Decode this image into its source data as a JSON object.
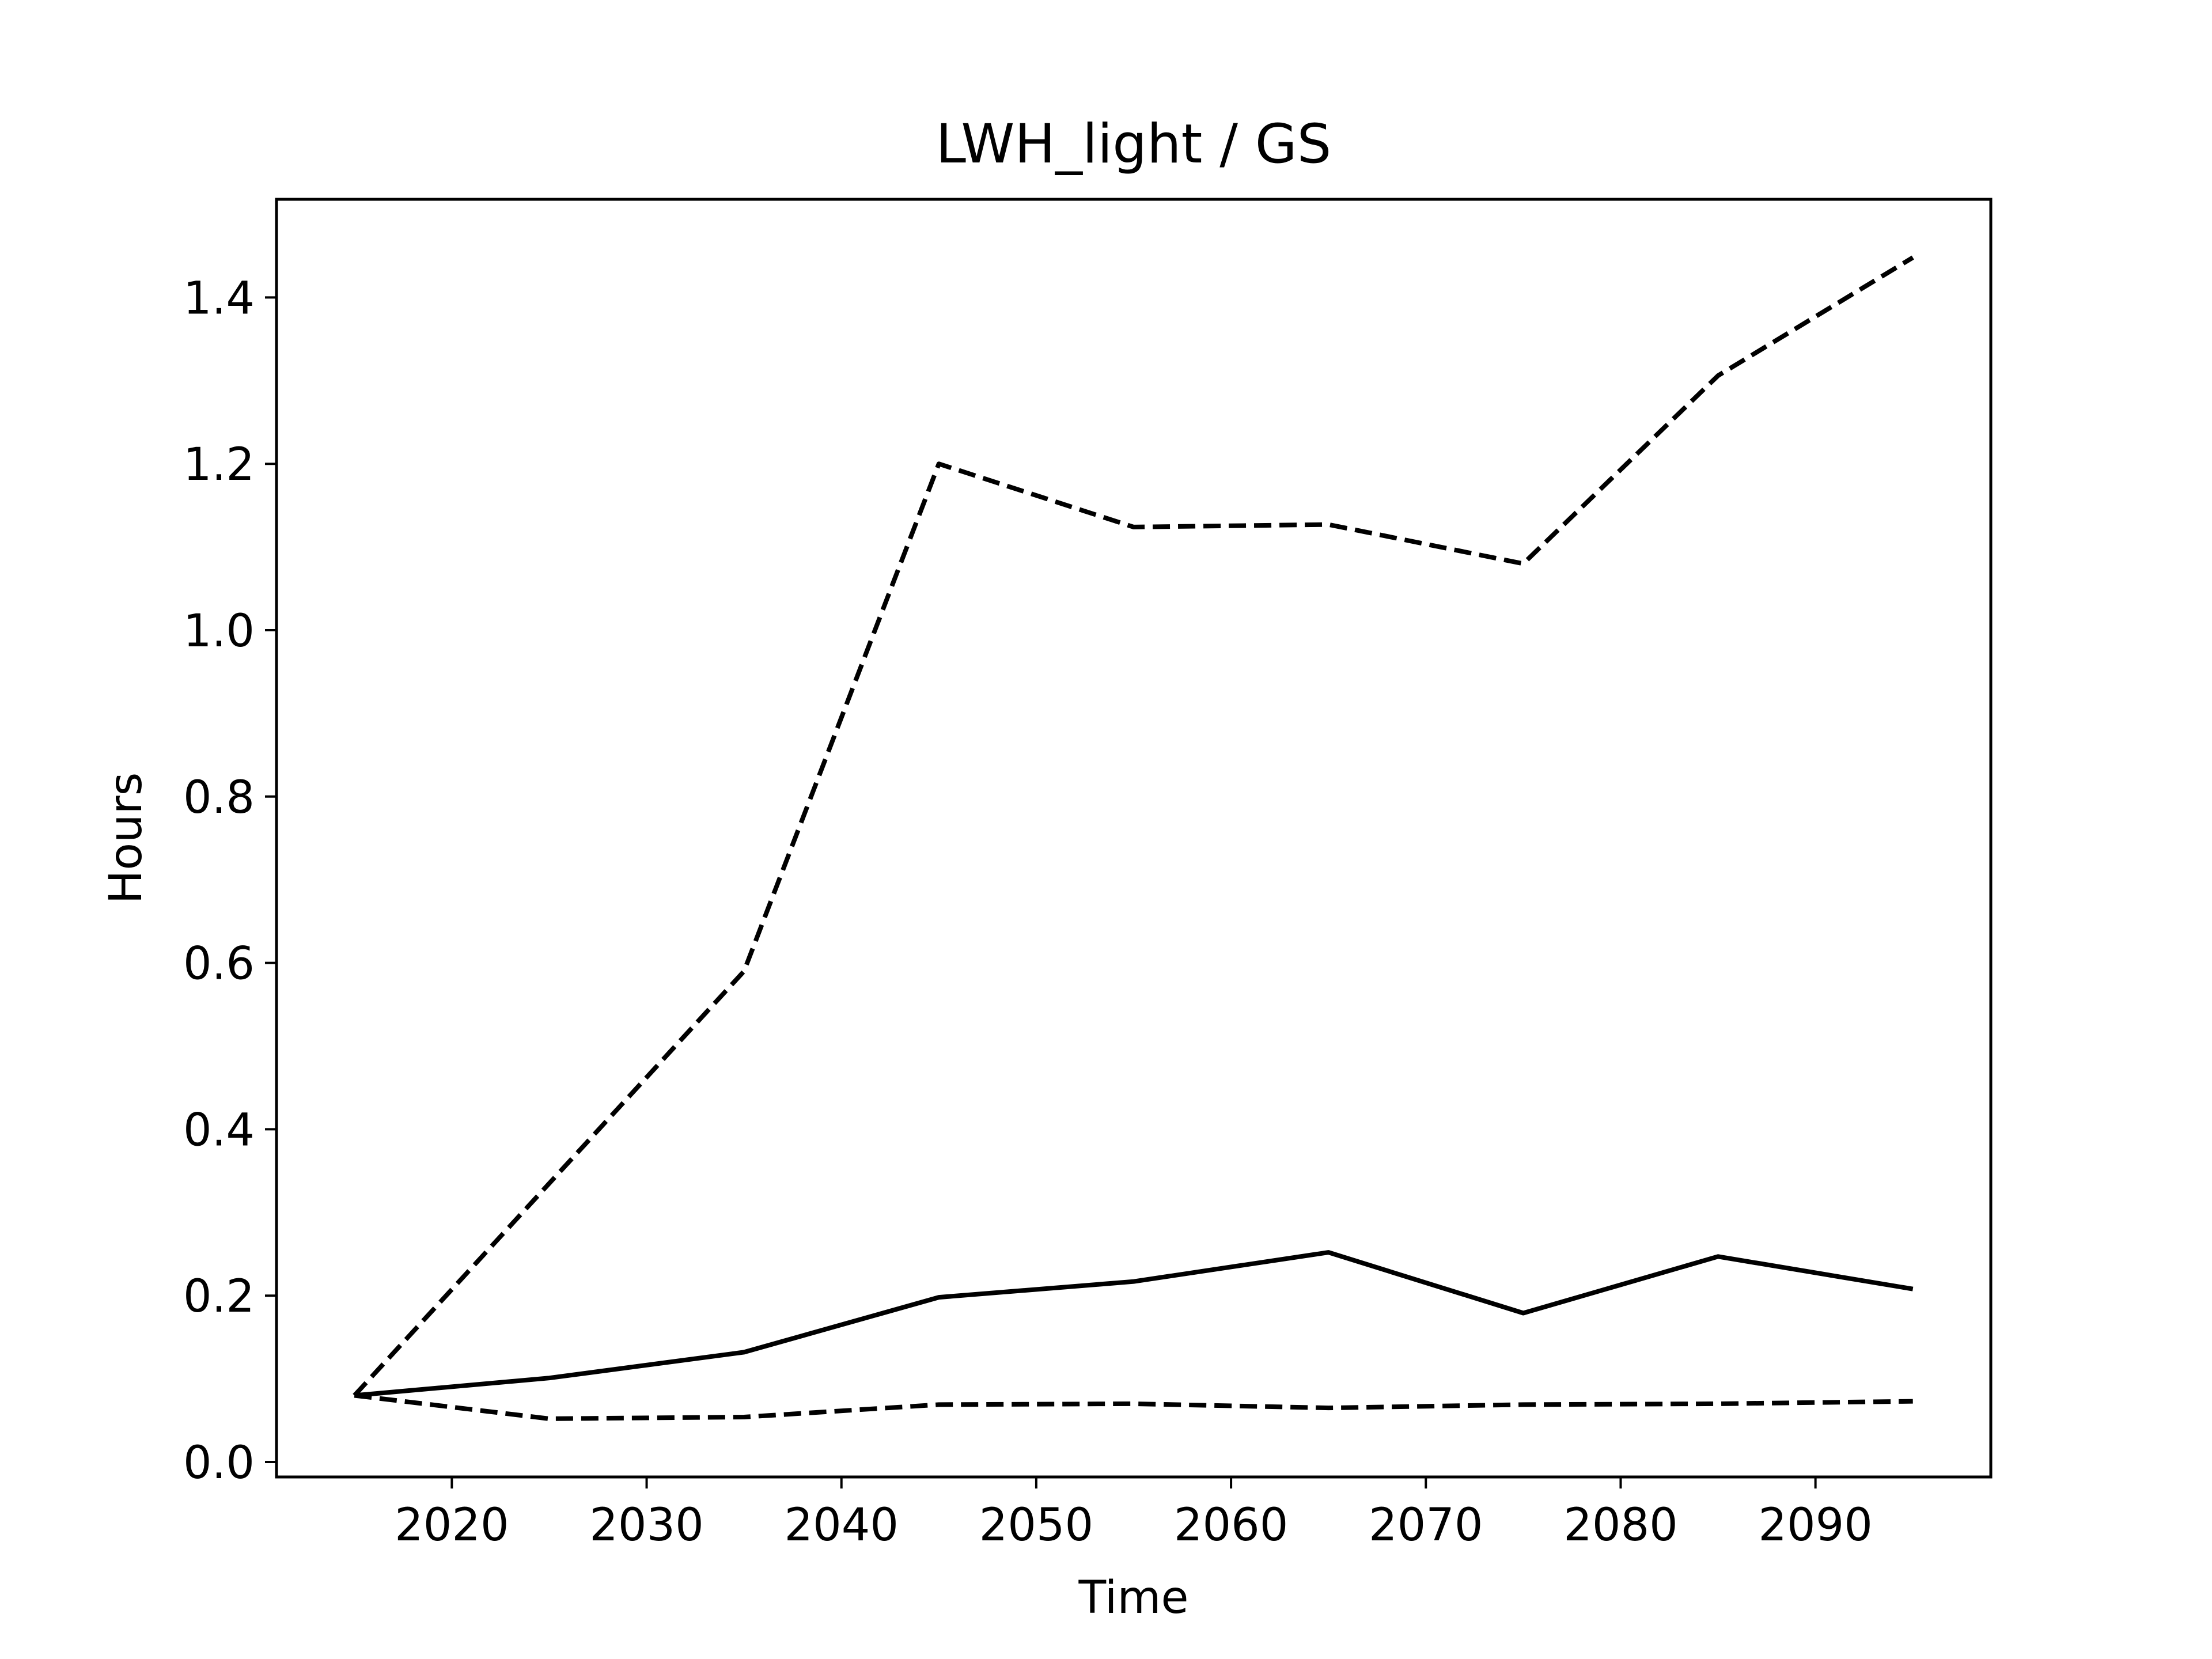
{
  "chart_data": {
    "type": "line",
    "title": "LWH_light / GS",
    "xlabel": "Time",
    "ylabel": "Hours",
    "xlim": [
      2011,
      2099
    ],
    "ylim": [
      -0.018,
      1.518
    ],
    "xticks": [
      2020,
      2030,
      2040,
      2050,
      2060,
      2070,
      2080,
      2090
    ],
    "yticks": [
      0.0,
      0.2,
      0.4,
      0.6,
      0.8,
      1.0,
      1.2,
      1.4
    ],
    "ytick_labels": [
      "0.0",
      "0.2",
      "0.4",
      "0.6",
      "0.8",
      "1.0",
      "1.2",
      "1.4"
    ],
    "grid": false,
    "legend": false,
    "x": [
      2015,
      2025,
      2035,
      2045,
      2055,
      2065,
      2075,
      2085,
      2095
    ],
    "series": [
      {
        "style": "solid",
        "color": "#000000",
        "values": [
          0.08,
          0.101,
          0.132,
          0.198,
          0.217,
          0.252,
          0.179,
          0.247,
          0.208
        ]
      },
      {
        "style": "dashed",
        "color": "#000000",
        "values": [
          0.08,
          0.335,
          0.59,
          1.2,
          1.124,
          1.127,
          1.08,
          1.306,
          1.448
        ]
      },
      {
        "style": "dashed",
        "color": "#000000",
        "values": [
          0.08,
          0.052,
          0.054,
          0.069,
          0.07,
          0.065,
          0.069,
          0.07,
          0.073
        ]
      }
    ]
  }
}
